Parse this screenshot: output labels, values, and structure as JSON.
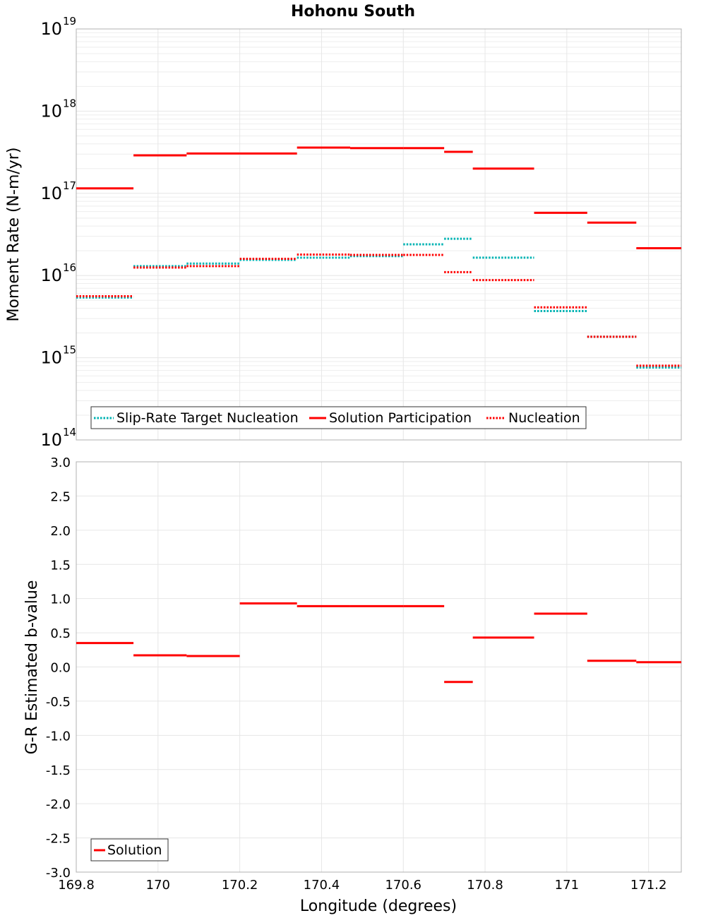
{
  "colors": {
    "solution": "#ff0000",
    "nucleation": "#ff0000",
    "target": "#00b3b3"
  },
  "chart_data": [
    {
      "type": "line",
      "title": "Hohonu South",
      "ylabel": "Moment Rate (N-m/yr)",
      "xlabel": "",
      "yscale": "log",
      "ylim": [
        100000000000000.0,
        1e+19
      ],
      "xlim": [
        169.8,
        171.28
      ],
      "ytick_bases": [
        "10",
        "10",
        "10",
        "10",
        "10",
        "10"
      ],
      "ytick_exps": [
        "14",
        "15",
        "16",
        "17",
        "18",
        "19"
      ],
      "legend": {
        "placement": "bottom-left",
        "entries": [
          "Slip-Rate Target Nucleation",
          "Solution Participation",
          "Nucleation"
        ]
      },
      "series": [
        {
          "name": "Slip-Rate Target Nucleation",
          "style": "dotted",
          "color": "#00b3b3",
          "segments": [
            {
              "x0": 169.8,
              "x1": 169.94,
              "y": 5400000000000000.0
            },
            {
              "x0": 169.94,
              "x1": 170.07,
              "y": 1.3e+16
            },
            {
              "x0": 170.07,
              "x1": 170.2,
              "y": 1.4e+16
            },
            {
              "x0": 170.2,
              "x1": 170.34,
              "y": 1.55e+16
            },
            {
              "x0": 170.34,
              "x1": 170.47,
              "y": 1.65e+16
            },
            {
              "x0": 170.47,
              "x1": 170.6,
              "y": 1.72e+16
            },
            {
              "x0": 170.6,
              "x1": 170.7,
              "y": 2.4e+16
            },
            {
              "x0": 170.7,
              "x1": 170.77,
              "y": 2.8e+16
            },
            {
              "x0": 170.77,
              "x1": 170.92,
              "y": 1.65e+16
            },
            {
              "x0": 170.92,
              "x1": 171.05,
              "y": 3700000000000000.0
            },
            {
              "x0": 171.05,
              "x1": 171.17,
              "y": 1800000000000000.0
            },
            {
              "x0": 171.17,
              "x1": 171.28,
              "y": 760000000000000.0
            }
          ]
        },
        {
          "name": "Solution Participation",
          "style": "solid",
          "color": "#ff0000",
          "segments": [
            {
              "x0": 169.8,
              "x1": 169.94,
              "y": 1.15e+17
            },
            {
              "x0": 169.94,
              "x1": 170.07,
              "y": 2.9e+17
            },
            {
              "x0": 170.07,
              "x1": 170.2,
              "y": 3.05e+17
            },
            {
              "x0": 170.2,
              "x1": 170.34,
              "y": 3.05e+17
            },
            {
              "x0": 170.34,
              "x1": 170.47,
              "y": 3.6e+17
            },
            {
              "x0": 170.47,
              "x1": 170.6,
              "y": 3.55e+17
            },
            {
              "x0": 170.6,
              "x1": 170.7,
              "y": 3.55e+17
            },
            {
              "x0": 170.7,
              "x1": 170.77,
              "y": 3.2e+17
            },
            {
              "x0": 170.77,
              "x1": 170.92,
              "y": 2e+17
            },
            {
              "x0": 170.92,
              "x1": 171.05,
              "y": 5.8e+16
            },
            {
              "x0": 171.05,
              "x1": 171.17,
              "y": 4.4e+16
            },
            {
              "x0": 171.17,
              "x1": 171.28,
              "y": 2.15e+16
            }
          ]
        },
        {
          "name": "Nucleation",
          "style": "dotted",
          "color": "#ff0000",
          "segments": [
            {
              "x0": 169.8,
              "x1": 169.94,
              "y": 5600000000000000.0
            },
            {
              "x0": 169.94,
              "x1": 170.07,
              "y": 1.25e+16
            },
            {
              "x0": 170.07,
              "x1": 170.2,
              "y": 1.3e+16
            },
            {
              "x0": 170.2,
              "x1": 170.34,
              "y": 1.6e+16
            },
            {
              "x0": 170.34,
              "x1": 170.47,
              "y": 1.8e+16
            },
            {
              "x0": 170.47,
              "x1": 170.6,
              "y": 1.78e+16
            },
            {
              "x0": 170.6,
              "x1": 170.7,
              "y": 1.78e+16
            },
            {
              "x0": 170.7,
              "x1": 170.77,
              "y": 1.1e+16
            },
            {
              "x0": 170.77,
              "x1": 170.92,
              "y": 8800000000000000.0
            },
            {
              "x0": 170.92,
              "x1": 171.05,
              "y": 4100000000000000.0
            },
            {
              "x0": 171.05,
              "x1": 171.17,
              "y": 1800000000000000.0
            },
            {
              "x0": 171.17,
              "x1": 171.28,
              "y": 800000000000000.0
            }
          ]
        }
      ]
    },
    {
      "type": "line",
      "title": "",
      "ylabel": "G-R Estimated b-value",
      "xlabel": "Longitude (degrees)",
      "ylim": [
        -3.0,
        3.0
      ],
      "xlim": [
        169.8,
        171.28
      ],
      "yticks": [
        "-3.0",
        "-2.5",
        "-2.0",
        "-1.5",
        "-1.0",
        "-0.5",
        "0.0",
        "0.5",
        "1.0",
        "1.5",
        "2.0",
        "2.5",
        "3.0"
      ],
      "ytick_values": [
        -3.0,
        -2.5,
        -2.0,
        -1.5,
        -1.0,
        -0.5,
        0.0,
        0.5,
        1.0,
        1.5,
        2.0,
        2.5,
        3.0
      ],
      "xticks": [
        "169.8",
        "170",
        "170.2",
        "170.4",
        "170.6",
        "170.8",
        "171",
        "171.2"
      ],
      "xtick_values": [
        169.8,
        170.0,
        170.2,
        170.4,
        170.6,
        170.8,
        171.0,
        171.2
      ],
      "legend": {
        "placement": "bottom-left",
        "entries": [
          "Solution"
        ]
      },
      "series": [
        {
          "name": "Solution",
          "style": "solid",
          "color": "#ff0000",
          "segments": [
            {
              "x0": 169.8,
              "x1": 169.94,
              "y": 0.35
            },
            {
              "x0": 169.94,
              "x1": 170.07,
              "y": 0.17
            },
            {
              "x0": 170.07,
              "x1": 170.2,
              "y": 0.16
            },
            {
              "x0": 170.2,
              "x1": 170.34,
              "y": 0.93
            },
            {
              "x0": 170.34,
              "x1": 170.47,
              "y": 0.89
            },
            {
              "x0": 170.47,
              "x1": 170.6,
              "y": 0.89
            },
            {
              "x0": 170.6,
              "x1": 170.7,
              "y": 0.89
            },
            {
              "x0": 170.7,
              "x1": 170.77,
              "y": -0.22
            },
            {
              "x0": 170.77,
              "x1": 170.92,
              "y": 0.43
            },
            {
              "x0": 170.92,
              "x1": 171.05,
              "y": 0.78
            },
            {
              "x0": 171.05,
              "x1": 171.17,
              "y": 0.09
            },
            {
              "x0": 171.17,
              "x1": 171.28,
              "y": 0.07
            }
          ]
        }
      ]
    }
  ]
}
